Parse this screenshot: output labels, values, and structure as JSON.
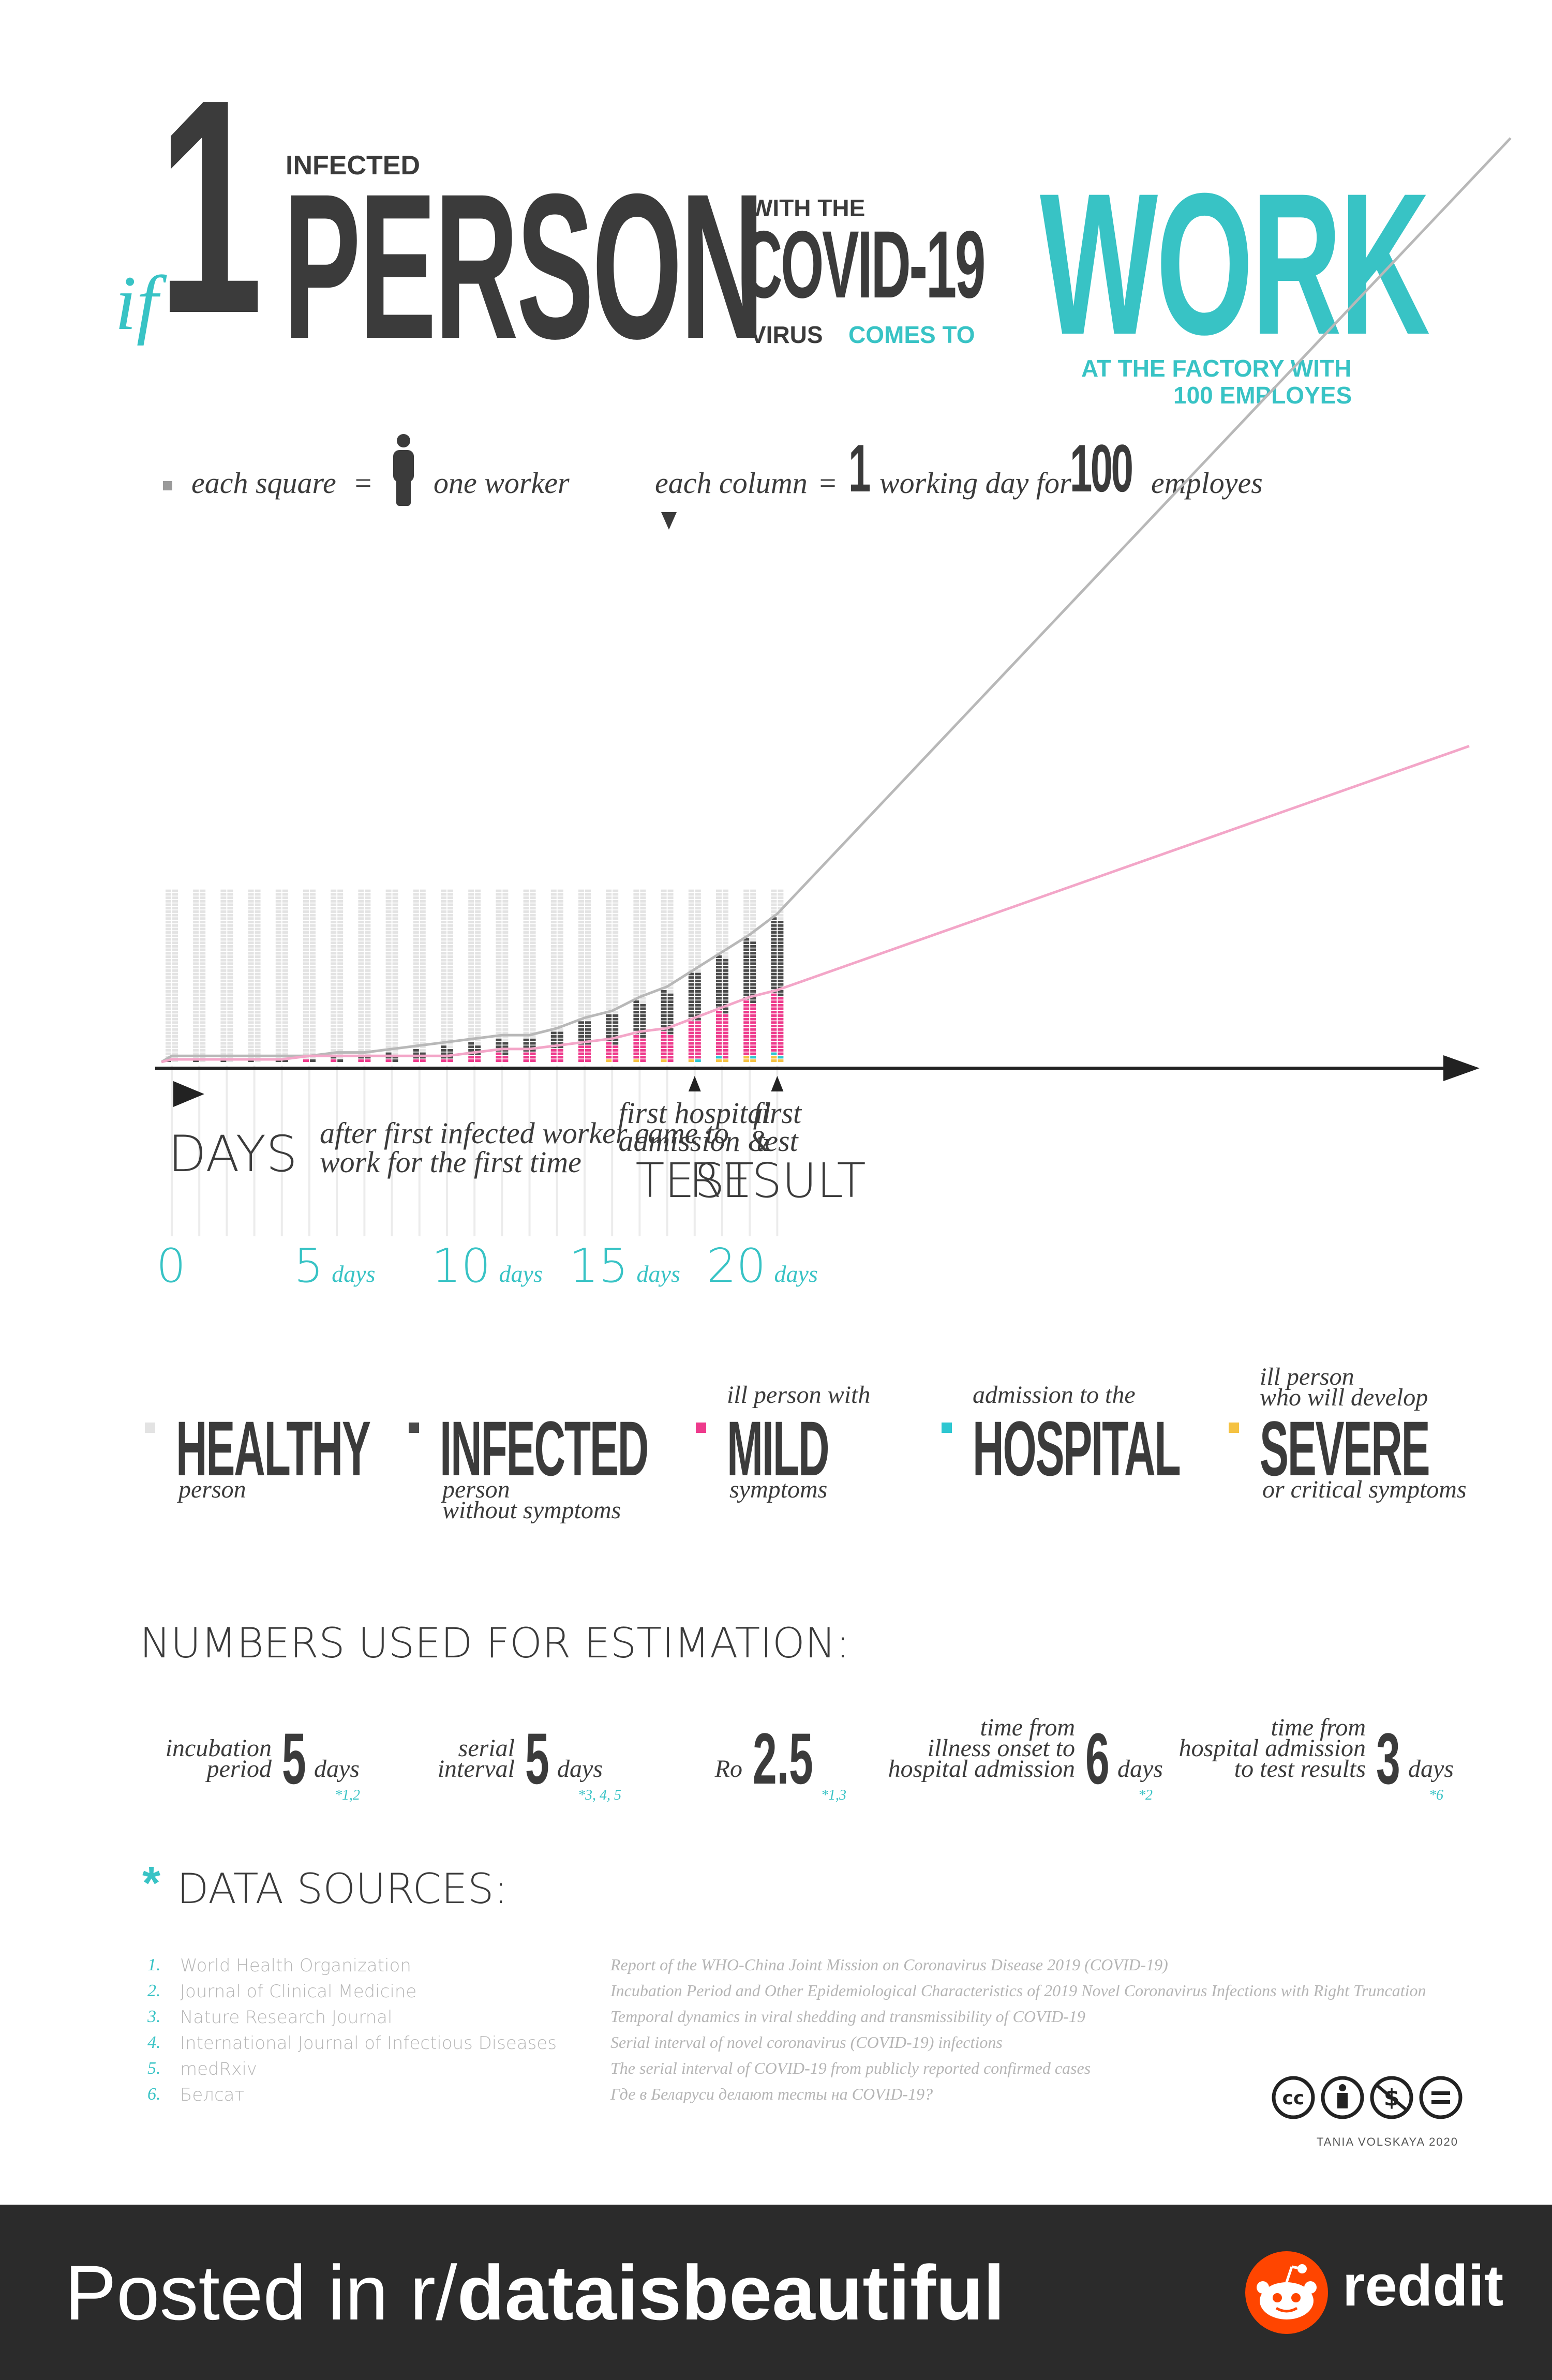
{
  "title": {
    "if": "if",
    "one": "1",
    "infected": "INFECTED",
    "person": "PERSON",
    "with_the": "WITH THE",
    "covid": "COVID-19",
    "virus": "VIRUS",
    "comes_to": "COMES TO",
    "work": "WORK",
    "factory_line1": "AT THE FACTORY WITH",
    "factory_line2": "100 EMPLOYES"
  },
  "key": {
    "each_square": "each square",
    "eq1": "=",
    "one_worker": "one worker",
    "each_column": "each column",
    "eq2": "=",
    "one": "1",
    "working_day_for": "working day for",
    "hundred": "100",
    "employes": "employes"
  },
  "colors": {
    "healthy": "#e3e3e3",
    "infected": "#4a4a4a",
    "mild": "#ee3a8c",
    "hospital": "#2ec7d1",
    "severe": "#f5c242",
    "teal": "#38c3c5"
  },
  "chart_data": {
    "type": "bar",
    "stacked": true,
    "x": [
      0,
      1,
      2,
      3,
      4,
      5,
      6,
      7,
      8,
      9,
      10,
      11,
      12,
      13,
      14,
      15,
      16,
      17,
      18,
      19,
      20,
      21,
      22
    ],
    "xlabel": "DAYS",
    "xlabel_note": "after first infected worker came to work for the first time",
    "x_ticks": [
      {
        "value": "0",
        "unit": ""
      },
      {
        "value": "5",
        "unit": "days"
      },
      {
        "value": "10",
        "unit": "days"
      },
      {
        "value": "15",
        "unit": "days"
      },
      {
        "value": "20",
        "unit": "days"
      }
    ],
    "ylim": [
      0,
      100
    ],
    "series": [
      {
        "name": "INFECTED",
        "color": "#4a4a4a",
        "values": [
          1,
          1,
          1,
          1,
          2,
          1,
          2,
          2,
          4,
          5,
          7,
          7,
          8,
          8,
          10,
          14,
          17,
          20,
          24,
          28,
          32,
          36,
          44
        ]
      },
      {
        "name": "MILD",
        "color": "#ee3a8c",
        "values": [
          0,
          0,
          0,
          0,
          0,
          1,
          1,
          2,
          1,
          2,
          2,
          4,
          5,
          6,
          8,
          10,
          10,
          14,
          16,
          22,
          26,
          31,
          34
        ]
      },
      {
        "name": "HOSPITAL",
        "color": "#2ec7d1",
        "values": [
          0,
          0,
          0,
          0,
          0,
          0,
          0,
          0,
          0,
          0,
          0,
          0,
          0,
          0,
          0,
          0,
          0,
          0,
          0,
          1,
          1,
          1,
          2
        ]
      },
      {
        "name": "SEVERE",
        "color": "#f5c242",
        "values": [
          0,
          0,
          0,
          0,
          0,
          0,
          0,
          0,
          0,
          0,
          0,
          0,
          0,
          0,
          0,
          0,
          1,
          1,
          1,
          1,
          2,
          3,
          3
        ]
      }
    ],
    "annotations": [
      {
        "day": 19,
        "line1": "first hospital",
        "line2": "admission &",
        "line3": "TEST"
      },
      {
        "day": 22,
        "line1": "first",
        "line2": "test",
        "line3": "RESULT"
      }
    ]
  },
  "legend": [
    {
      "top": "",
      "main": "HEALTHY",
      "sub": "person",
      "sub2": "",
      "color": "#e3e3e3"
    },
    {
      "top": "",
      "main": "INFECTED",
      "sub": "person",
      "sub2": "without symptoms",
      "color": "#4a4a4a"
    },
    {
      "top": "ill person with",
      "main": "MILD",
      "sub": "symptoms",
      "sub2": "",
      "color": "#ee3a8c"
    },
    {
      "top": "admission to the",
      "main": "HOSPITAL",
      "sub": "",
      "sub2": "",
      "color": "#2ec7d1"
    },
    {
      "top": "ill person",
      "top2": "who will develop",
      "main": "SEVERE",
      "sub": "or critical symptoms",
      "sub2": "",
      "color": "#f5c242"
    }
  ],
  "numbers": {
    "heading": "NUMBERS USED FOR ESTIMATION:",
    "items": [
      {
        "label1": "incubation",
        "label2": "period",
        "label3": "",
        "value": "5",
        "unit": "days",
        "ref": "*1,2"
      },
      {
        "label1": "serial",
        "label2": "interval",
        "label3": "",
        "value": "5",
        "unit": "days",
        "ref": "*3, 4, 5"
      },
      {
        "label1": "",
        "label2": "Ro",
        "label3": "",
        "value": "2.5",
        "unit": "",
        "ref": "*1,3"
      },
      {
        "label1": "time from",
        "label2": "illness onset to",
        "label3": "hospital admission",
        "value": "6",
        "unit": "days",
        "ref": "*2"
      },
      {
        "label1": "time from",
        "label2": "hospital admission",
        "label3": "to test results",
        "value": "3",
        "unit": "days",
        "ref": "*6"
      }
    ]
  },
  "sources": {
    "asterisk": "*",
    "heading": "DATA SOURCES:",
    "items": [
      {
        "num": "1.",
        "name": "World Health Organization",
        "title": "Report of the WHO-China Joint Mission on Coronavirus Disease 2019 (COVID-19)"
      },
      {
        "num": "2.",
        "name": "Journal of Clinical Medicine",
        "title": "Incubation Period and Other Epidemiological Characteristics of 2019 Novel Coronavirus Infections with Right Truncation"
      },
      {
        "num": "3.",
        "name": "Nature Research Journal",
        "title": "Temporal dynamics in viral shedding and transmissibility of COVID-19"
      },
      {
        "num": "4.",
        "name": "International Journal of Infectious Diseases",
        "title": "Serial interval of novel coronavirus (COVID-19) infections"
      },
      {
        "num": "5.",
        "name": "medRxiv",
        "title": "The serial interval of COVID-19 from publicly reported confirmed cases"
      },
      {
        "num": "6.",
        "name": "Белсат",
        "title": "Где в Беларуси делают тесты на COVID-19?"
      }
    ]
  },
  "license": {
    "icons": [
      "cc-icon",
      "by-icon",
      "nc-icon",
      "nd-icon"
    ],
    "author": "TANIA VOLSKAYA 2020"
  },
  "footer": {
    "posted_in": "Posted in r/",
    "subreddit": "dataisbeautiful",
    "brand": "reddit"
  }
}
